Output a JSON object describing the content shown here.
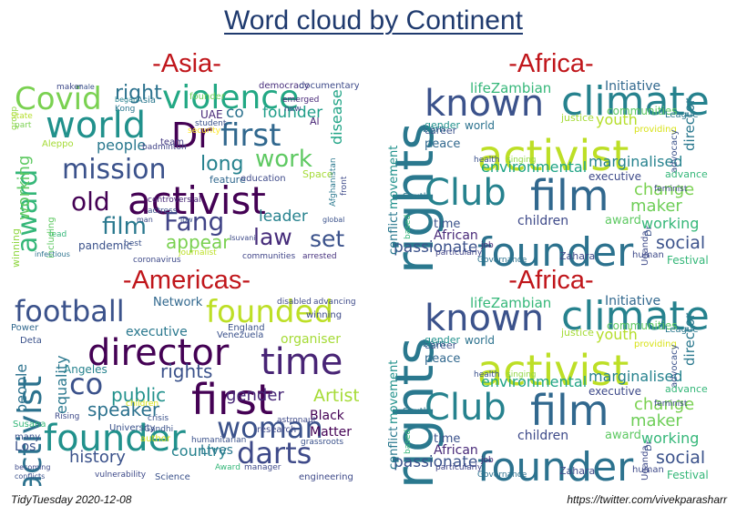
{
  "title": "Word cloud by Continent",
  "footer": {
    "left": "TidyTuesday 2020-12-08",
    "right": "https://twitter.com/vivekparasharr"
  },
  "panels": [
    {
      "title": "-Asia-",
      "words": [
        {
          "text": "activist",
          "color": "#440154"
        },
        {
          "text": "world",
          "color": "#21918c"
        },
        {
          "text": "violence",
          "color": "#22a884"
        },
        {
          "text": "Covid",
          "color": "#7ad151"
        },
        {
          "text": "Dr",
          "color": "#440154"
        },
        {
          "text": "first",
          "color": "#31688e"
        },
        {
          "text": "mission",
          "color": "#3b528b"
        },
        {
          "text": "award",
          "color": "#35b779"
        },
        {
          "text": "old",
          "color": "#440154"
        },
        {
          "text": "Fang",
          "color": "#414487"
        },
        {
          "text": "film",
          "color": "#2a788e"
        },
        {
          "text": "law",
          "color": "#472d7b"
        },
        {
          "text": "set",
          "color": "#3b528b"
        },
        {
          "text": "work",
          "color": "#5ec962"
        },
        {
          "text": "right",
          "color": "#2c728e"
        },
        {
          "text": "long",
          "color": "#26828e"
        },
        {
          "text": "people",
          "color": "#2a788e"
        },
        {
          "text": "working",
          "color": "#5ec962"
        },
        {
          "text": "appear",
          "color": "#7ad151"
        },
        {
          "text": "leader",
          "color": "#26828e"
        },
        {
          "text": "disease",
          "color": "#20a486"
        },
        {
          "text": "founder",
          "color": "#1f9e89"
        },
        {
          "text": "co",
          "color": "#2c728e"
        },
        {
          "text": "democracy",
          "color": "#472d7b"
        },
        {
          "text": "documentary",
          "color": "#3e4a89"
        },
        {
          "text": "pandemic",
          "color": "#3b528b"
        },
        {
          "text": "journalist",
          "color": "#bddf26"
        },
        {
          "text": "communities",
          "color": "#404588"
        },
        {
          "text": "arrested",
          "color": "#46327e"
        },
        {
          "text": "Space",
          "color": "#a5db36"
        },
        {
          "text": "feature",
          "color": "#31688e"
        },
        {
          "text": "education",
          "color": "#3e4a89"
        },
        {
          "text": "UAE",
          "color": "#482878"
        },
        {
          "text": "Kong",
          "color": "#2a788e"
        },
        {
          "text": "maker",
          "color": "#3e4a89"
        },
        {
          "text": "team",
          "color": "#443983"
        },
        {
          "text": "Al",
          "color": "#482475"
        },
        {
          "text": "coronavirus",
          "color": "#3e4a89"
        },
        {
          "text": "best",
          "color": "#3b528b"
        },
        {
          "text": "lead",
          "color": "#35b779"
        },
        {
          "text": "including",
          "color": "#5ec962"
        },
        {
          "text": "controversial",
          "color": "#482878"
        },
        {
          "text": "actress",
          "color": "#3b528b"
        },
        {
          "text": "Aleppo",
          "color": "#a5db36"
        },
        {
          "text": "badminton",
          "color": "#414487"
        },
        {
          "text": "Asia",
          "color": "#2a788e"
        },
        {
          "text": "student",
          "color": "#3b528b"
        },
        {
          "text": "founder",
          "color": "#6ece58"
        },
        {
          "text": "security",
          "color": "#fde725"
        },
        {
          "text": "group",
          "color": "#90d743"
        },
        {
          "text": "State",
          "color": "#b5de2b"
        },
        {
          "text": "part",
          "color": "#7ad151"
        },
        {
          "text": "began",
          "color": "#26828e"
        },
        {
          "text": "new",
          "color": "#3e4a89"
        },
        {
          "text": "emerged",
          "color": "#482878"
        },
        {
          "text": "Afghanistan",
          "color": "#2a788e"
        },
        {
          "text": "winning",
          "color": "#90d743"
        },
        {
          "text": "man",
          "color": "#3e4a89"
        },
        {
          "text": "low",
          "color": "#3b528b"
        },
        {
          "text": "global",
          "color": "#3b528b"
        },
        {
          "text": "front",
          "color": "#3e4a89"
        },
        {
          "text": "Isuvani",
          "color": "#3e4a89"
        },
        {
          "text": "male",
          "color": "#3b528b"
        },
        {
          "text": "infectious",
          "color": "#2c728e"
        }
      ]
    },
    {
      "title": "-Africa-",
      "words": [
        {
          "text": "founder",
          "color": "#2c728e"
        },
        {
          "text": "activist",
          "color": "#bddf26"
        },
        {
          "text": "climate",
          "color": "#26828e"
        },
        {
          "text": "rights",
          "color": "#2a788e"
        },
        {
          "text": "film",
          "color": "#31688e"
        },
        {
          "text": "known",
          "color": "#3b528b"
        },
        {
          "text": "Club",
          "color": "#26828e"
        },
        {
          "text": "lifeZambian",
          "color": "#35b779"
        },
        {
          "text": "Initiative",
          "color": "#31688e"
        },
        {
          "text": "director",
          "color": "#2a788e"
        },
        {
          "text": "environmental",
          "color": "#20a486"
        },
        {
          "text": "marginalised",
          "color": "#26828e"
        },
        {
          "text": "change",
          "color": "#7ad151"
        },
        {
          "text": "maker",
          "color": "#6ece58"
        },
        {
          "text": "working",
          "color": "#35b779"
        },
        {
          "text": "social",
          "color": "#3b528b"
        },
        {
          "text": "passionate",
          "color": "#3b528b"
        },
        {
          "text": "African",
          "color": "#482878"
        },
        {
          "text": "children",
          "color": "#3e4a89"
        },
        {
          "text": "award",
          "color": "#5ec962"
        },
        {
          "text": "peace",
          "color": "#31688e"
        },
        {
          "text": "career",
          "color": "#3b528b"
        },
        {
          "text": "born",
          "color": "#2c728e"
        },
        {
          "text": "world",
          "color": "#2c728e"
        },
        {
          "text": "gender",
          "color": "#21918c"
        },
        {
          "text": "movement",
          "color": "#21918c"
        },
        {
          "text": "conflict",
          "color": "#2a788e"
        },
        {
          "text": "youth",
          "color": "#b5de2b"
        },
        {
          "text": "justice",
          "color": "#a5db36"
        },
        {
          "text": "communities",
          "color": "#5ec962"
        },
        {
          "text": "providing",
          "color": "#d8e219"
        },
        {
          "text": "executive",
          "color": "#3e4a89"
        },
        {
          "text": "advocacy",
          "color": "#3b528b"
        },
        {
          "text": "advance",
          "color": "#35b779"
        },
        {
          "text": "Festival",
          "color": "#35b779"
        },
        {
          "text": "time",
          "color": "#3b528b"
        },
        {
          "text": "Uganda",
          "color": "#3e4a89"
        },
        {
          "text": "Zahara",
          "color": "#3e4a89"
        },
        {
          "text": "human",
          "color": "#3e4a89"
        },
        {
          "text": "South",
          "color": "#2a788e"
        },
        {
          "text": "health",
          "color": "#3b528b"
        },
        {
          "text": "singing",
          "color": "#90d743"
        },
        {
          "text": "feminist",
          "color": "#3e4a89"
        },
        {
          "text": "job",
          "color": "#482878"
        },
        {
          "text": "Governance",
          "color": "#2c728e"
        },
        {
          "text": "based",
          "color": "#35b779"
        },
        {
          "text": "particularly",
          "color": "#414487"
        },
        {
          "text": "League",
          "color": "#2a788e"
        },
        {
          "text": "Dr",
          "color": "#3b528b"
        }
      ]
    },
    {
      "title": "-Americas-",
      "words": [
        {
          "text": "founder",
          "color": "#21918c"
        },
        {
          "text": "first",
          "color": "#440154"
        },
        {
          "text": "director",
          "color": "#440154"
        },
        {
          "text": "time",
          "color": "#482475"
        },
        {
          "text": "activist",
          "color": "#2c728e"
        },
        {
          "text": "woman",
          "color": "#3b528b"
        },
        {
          "text": "football",
          "color": "#3b528b"
        },
        {
          "text": "founded",
          "color": "#bddf26"
        },
        {
          "text": "co",
          "color": "#3b528b"
        },
        {
          "text": "darts",
          "color": "#3e4a89"
        },
        {
          "text": "speaker",
          "color": "#2c728e"
        },
        {
          "text": "rights",
          "color": "#3b528b"
        },
        {
          "text": "public",
          "color": "#21918c"
        },
        {
          "text": "history",
          "color": "#3b528b"
        },
        {
          "text": "Artist",
          "color": "#a5db36"
        },
        {
          "text": "gender",
          "color": "#482878"
        },
        {
          "text": "equality",
          "color": "#2a788e"
        },
        {
          "text": "people",
          "color": "#2c728e"
        },
        {
          "text": "country",
          "color": "#26828e"
        },
        {
          "text": "Angeles",
          "color": "#26828e"
        },
        {
          "text": "executive",
          "color": "#2a788e"
        },
        {
          "text": "Black",
          "color": "#440154"
        },
        {
          "text": "Matter",
          "color": "#440154"
        },
        {
          "text": "Lives",
          "color": "#2a788e"
        },
        {
          "text": "organiser",
          "color": "#a5db36"
        },
        {
          "text": "Network",
          "color": "#31688e"
        },
        {
          "text": "Los",
          "color": "#3b528b"
        },
        {
          "text": "University",
          "color": "#3b528b"
        },
        {
          "text": "Susana",
          "color": "#35b779"
        },
        {
          "text": "many",
          "color": "#3b528b"
        },
        {
          "text": "research",
          "color": "#3e4a89"
        },
        {
          "text": "author",
          "color": "#d8e219"
        },
        {
          "text": "children",
          "color": "#d8e219"
        },
        {
          "text": "crisis",
          "color": "#3b528b"
        },
        {
          "text": "Gandhi",
          "color": "#3b528b"
        },
        {
          "text": "astronaut",
          "color": "#3e4a89"
        },
        {
          "text": "grassroots",
          "color": "#3b528b"
        },
        {
          "text": "Venezuela",
          "color": "#3b528b"
        },
        {
          "text": "winning",
          "color": "#3e4a89"
        },
        {
          "text": "Science",
          "color": "#3b528b"
        },
        {
          "text": "engineering",
          "color": "#3e4a89"
        },
        {
          "text": "Award",
          "color": "#35b779"
        },
        {
          "text": "manager",
          "color": "#3e4a89"
        },
        {
          "text": "humanitarian",
          "color": "#3b528b"
        },
        {
          "text": "Rising",
          "color": "#3e4a89"
        },
        {
          "text": "England",
          "color": "#3b528b"
        },
        {
          "text": "Power",
          "color": "#31688e"
        },
        {
          "text": "Deta",
          "color": "#3b528b"
        },
        {
          "text": "disabled",
          "color": "#3e4a89"
        },
        {
          "text": "advancing",
          "color": "#3e4a89"
        },
        {
          "text": "vulnerability",
          "color": "#3e4a89"
        },
        {
          "text": "conflicts",
          "color": "#3b528b"
        },
        {
          "text": "becoming",
          "color": "#3e4a89"
        }
      ]
    },
    {
      "title": "-Africa-",
      "words": [
        {
          "text": "founder",
          "color": "#2c728e"
        },
        {
          "text": "activist",
          "color": "#bddf26"
        },
        {
          "text": "climate",
          "color": "#26828e"
        },
        {
          "text": "rights",
          "color": "#2a788e"
        },
        {
          "text": "film",
          "color": "#31688e"
        },
        {
          "text": "known",
          "color": "#3b528b"
        },
        {
          "text": "Club",
          "color": "#26828e"
        },
        {
          "text": "lifeZambian",
          "color": "#35b779"
        },
        {
          "text": "Initiative",
          "color": "#31688e"
        },
        {
          "text": "director",
          "color": "#2a788e"
        },
        {
          "text": "environmental",
          "color": "#20a486"
        },
        {
          "text": "marginalised",
          "color": "#26828e"
        },
        {
          "text": "change",
          "color": "#7ad151"
        },
        {
          "text": "maker",
          "color": "#6ece58"
        },
        {
          "text": "working",
          "color": "#35b779"
        },
        {
          "text": "social",
          "color": "#3b528b"
        },
        {
          "text": "passionate",
          "color": "#3b528b"
        },
        {
          "text": "African",
          "color": "#482878"
        },
        {
          "text": "children",
          "color": "#3e4a89"
        },
        {
          "text": "award",
          "color": "#5ec962"
        },
        {
          "text": "peace",
          "color": "#31688e"
        },
        {
          "text": "career",
          "color": "#3b528b"
        },
        {
          "text": "born",
          "color": "#2c728e"
        },
        {
          "text": "world",
          "color": "#2c728e"
        },
        {
          "text": "gender",
          "color": "#21918c"
        },
        {
          "text": "movement",
          "color": "#21918c"
        },
        {
          "text": "conflict",
          "color": "#2a788e"
        },
        {
          "text": "youth",
          "color": "#b5de2b"
        },
        {
          "text": "justice",
          "color": "#a5db36"
        },
        {
          "text": "communities",
          "color": "#5ec962"
        },
        {
          "text": "providing",
          "color": "#d8e219"
        },
        {
          "text": "executive",
          "color": "#3e4a89"
        },
        {
          "text": "advocacy",
          "color": "#3b528b"
        },
        {
          "text": "advance",
          "color": "#35b779"
        },
        {
          "text": "Festival",
          "color": "#35b779"
        },
        {
          "text": "time",
          "color": "#3b528b"
        },
        {
          "text": "Uganda",
          "color": "#3e4a89"
        },
        {
          "text": "Zahara",
          "color": "#3e4a89"
        },
        {
          "text": "human",
          "color": "#3e4a89"
        },
        {
          "text": "South",
          "color": "#2a788e"
        },
        {
          "text": "health",
          "color": "#3b528b"
        },
        {
          "text": "singing",
          "color": "#90d743"
        },
        {
          "text": "feminist",
          "color": "#3e4a89"
        },
        {
          "text": "job",
          "color": "#482878"
        },
        {
          "text": "Governance",
          "color": "#2c728e"
        },
        {
          "text": "based",
          "color": "#35b779"
        },
        {
          "text": "particularly",
          "color": "#414487"
        },
        {
          "text": "League",
          "color": "#2a788e"
        },
        {
          "text": "Dr",
          "color": "#3b528b"
        }
      ]
    }
  ]
}
